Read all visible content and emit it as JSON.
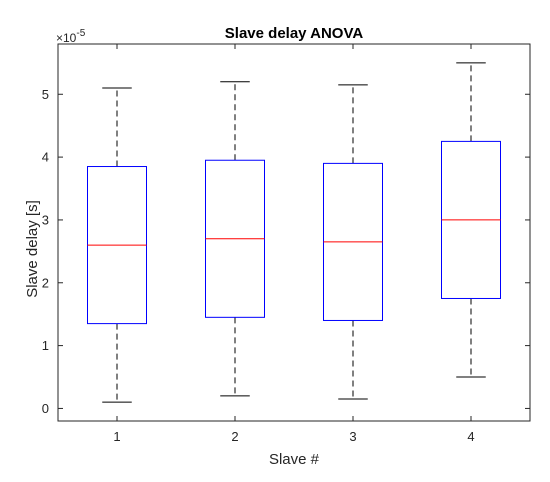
{
  "chart_data": {
    "type": "boxplot",
    "title": "Slave delay ANOVA",
    "xlabel": "Slave #",
    "ylabel": "Slave delay [s]",
    "y_exponent": {
      "base": "×10",
      "power": "-5"
    },
    "categories": [
      "1",
      "2",
      "3",
      "4"
    ],
    "ylim": [
      -0.2,
      5.8
    ],
    "yticks": [
      0,
      1,
      2,
      3,
      4,
      5
    ],
    "boxes": [
      {
        "category": "1",
        "whisker_low": 0.1,
        "q1": 1.35,
        "median": 2.6,
        "q3": 3.85,
        "whisker_high": 5.1
      },
      {
        "category": "2",
        "whisker_low": 0.2,
        "q1": 1.45,
        "median": 2.7,
        "q3": 3.95,
        "whisker_high": 5.2
      },
      {
        "category": "3",
        "whisker_low": 0.15,
        "q1": 1.4,
        "median": 2.65,
        "q3": 3.9,
        "whisker_high": 5.15
      },
      {
        "category": "4",
        "whisker_low": 0.5,
        "q1": 1.75,
        "median": 3.0,
        "q3": 4.25,
        "whisker_high": 5.5
      }
    ],
    "grid": false,
    "colors": {
      "box": "#0000ff",
      "median": "#ff0000",
      "whisker": "#000000",
      "axes": "#262626"
    }
  }
}
